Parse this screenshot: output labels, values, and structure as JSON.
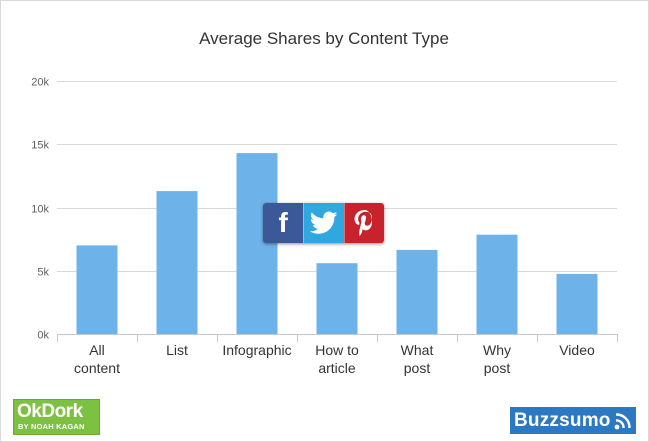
{
  "chart_data": {
    "type": "bar",
    "title": "Average Shares by Content Type",
    "categories": [
      [
        "All",
        "content"
      ],
      [
        "List"
      ],
      [
        "Infographic"
      ],
      [
        "How to",
        "article"
      ],
      [
        "What",
        "post"
      ],
      [
        "Why",
        "post"
      ],
      [
        "Video"
      ]
    ],
    "values": [
      7000,
      11300,
      14300,
      5600,
      6650,
      7850,
      4750
    ],
    "ylim": [
      0,
      20000
    ],
    "yticks": [
      0,
      5000,
      10000,
      15000,
      20000
    ],
    "ytick_labels": [
      "0k",
      "5k",
      "10k",
      "15k",
      "20k"
    ],
    "grid": true,
    "bar_color": "#6db3ea",
    "xlabel": "",
    "ylabel": ""
  },
  "share": {
    "facebook_glyph": "f",
    "facebook_color": "#3b5998",
    "twitter_color": "#2fa8e0",
    "pinterest_color": "#c8232c"
  },
  "logos": {
    "left_main": "OkDork",
    "left_sub": "BY NOAH KAGAN",
    "right": "Buzzsumo"
  }
}
